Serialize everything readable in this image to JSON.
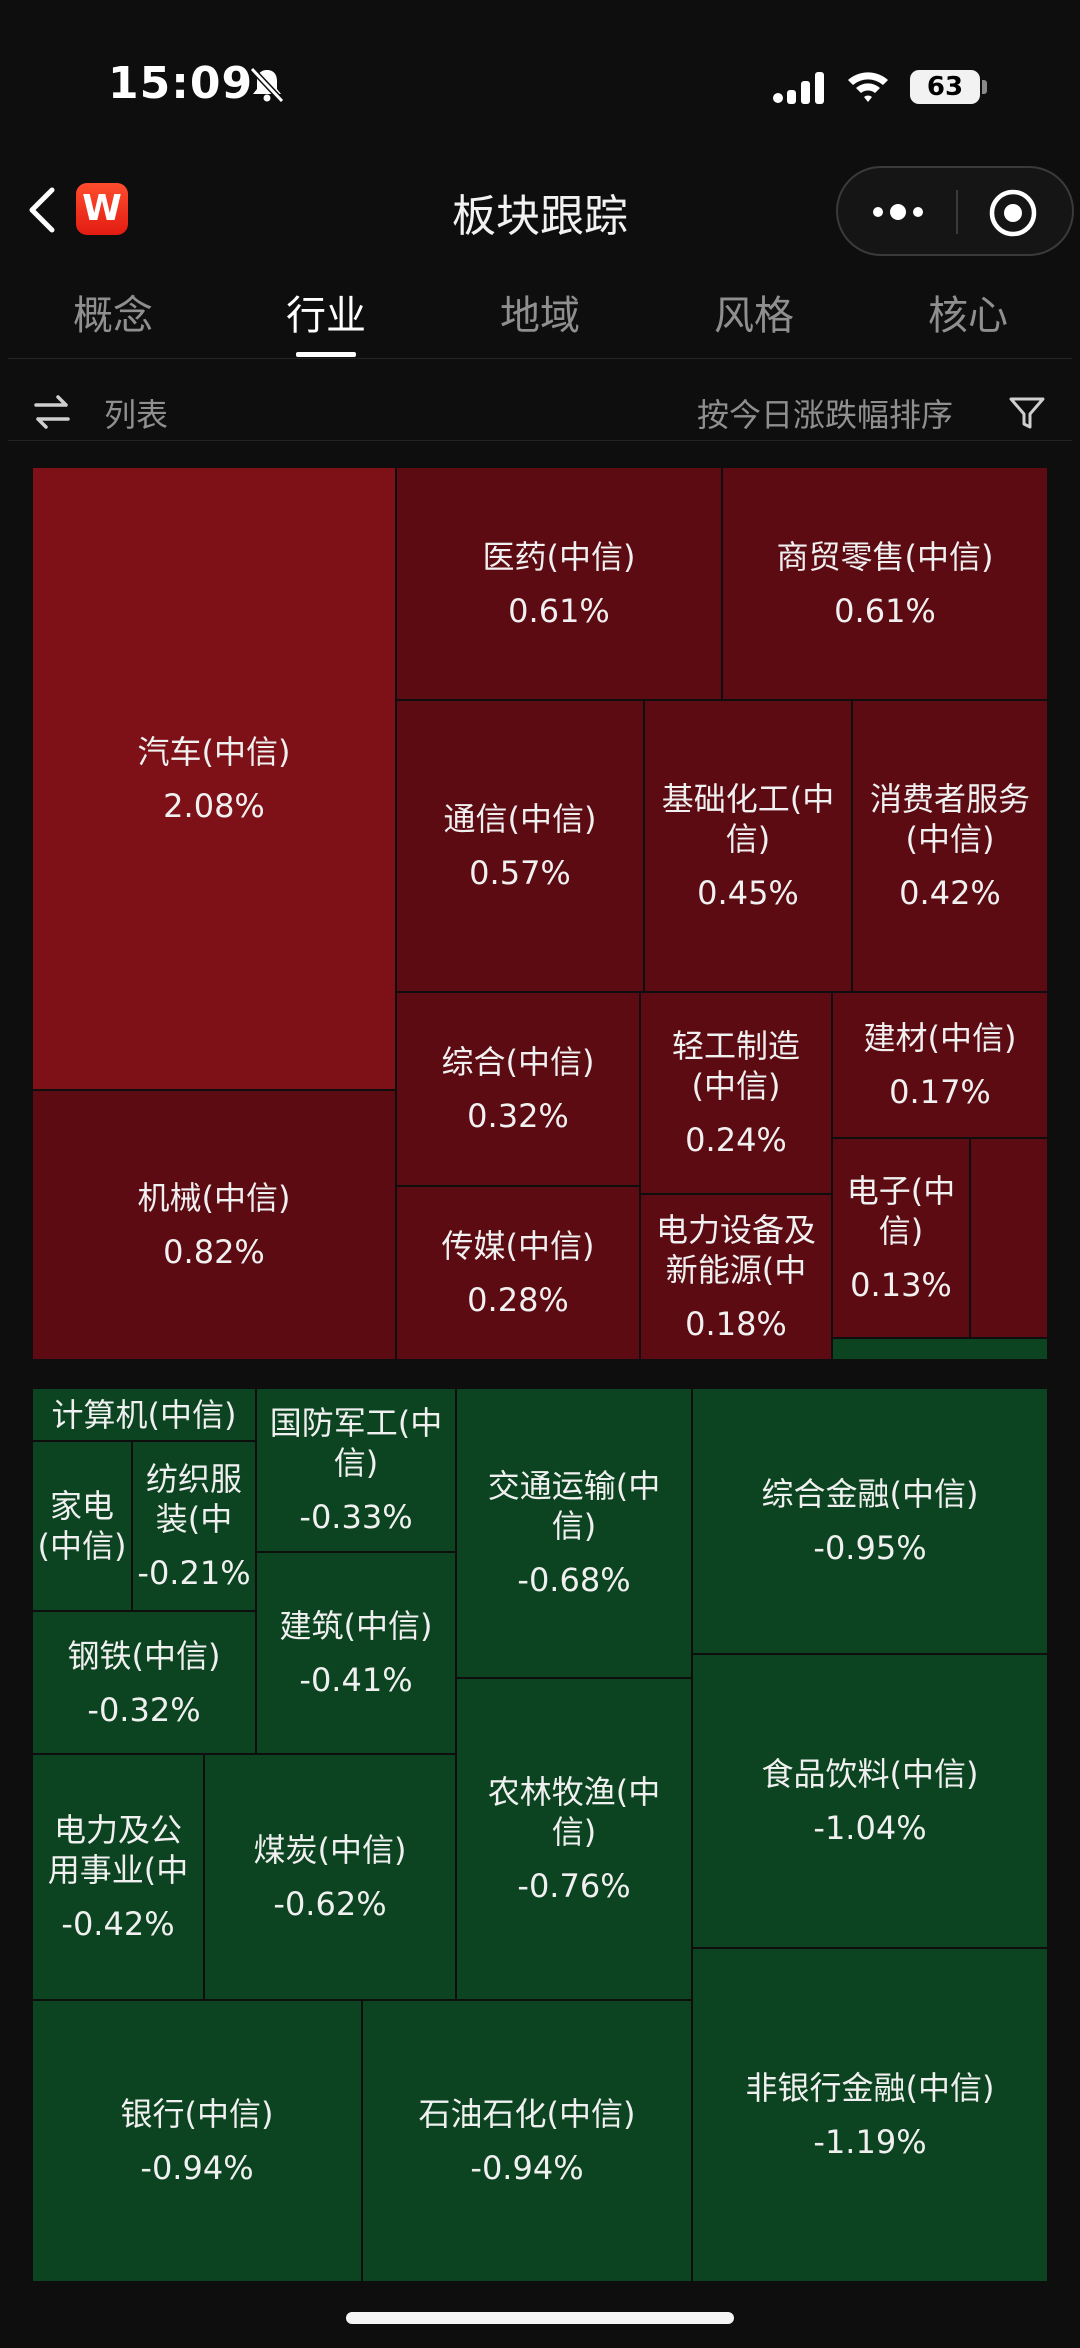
{
  "status_bar": {
    "time": "15:09",
    "battery": "63"
  },
  "header": {
    "title": "板块跟踪",
    "logo_letter": "W"
  },
  "tabs": [
    {
      "label": "概念",
      "active": false
    },
    {
      "label": "行业",
      "active": true
    },
    {
      "label": "地域",
      "active": false
    },
    {
      "label": "风格",
      "active": false
    },
    {
      "label": "核心",
      "active": false
    }
  ],
  "toolbar": {
    "view_label": "列表",
    "sort_label": "按今日涨跌幅排序"
  },
  "colors": {
    "rise_strong": "#7e1118",
    "rise": "#5c0b13",
    "fall": "#0c4320",
    "background": "#0e0e0e"
  },
  "treemap": {
    "cells": [
      {
        "id": "auto",
        "name": "汽车(中信)",
        "pct": "2.08%",
        "tone": "rise_strong"
      },
      {
        "id": "pharma",
        "name": "医药(中信)",
        "pct": "0.61%",
        "tone": "rise"
      },
      {
        "id": "retail",
        "name": "商贸零售(中信)",
        "pct": "0.61%",
        "tone": "rise"
      },
      {
        "id": "telecom",
        "name": "通信(中信)",
        "pct": "0.57%",
        "tone": "rise"
      },
      {
        "id": "chem",
        "name": "基础化工(中信)",
        "pct": "0.45%",
        "tone": "rise"
      },
      {
        "id": "consumer-services",
        "name": "消费者服务(中信)",
        "pct": "0.42%",
        "tone": "rise"
      },
      {
        "id": "machinery",
        "name": "机械(中信)",
        "pct": "0.82%",
        "tone": "rise"
      },
      {
        "id": "conglomerate",
        "name": "综合(中信)",
        "pct": "0.32%",
        "tone": "rise"
      },
      {
        "id": "light-industry",
        "name": "轻工制造(中信)",
        "pct": "0.24%",
        "tone": "rise"
      },
      {
        "id": "building-materials",
        "name": "建材(中信)",
        "pct": "0.17%",
        "tone": "rise"
      },
      {
        "id": "media",
        "name": "传媒(中信)",
        "pct": "0.28%",
        "tone": "rise"
      },
      {
        "id": "power-equipment",
        "name": "电力设备及新能源(中",
        "pct": "0.18%",
        "tone": "rise"
      },
      {
        "id": "electronics",
        "name": "电子(中信)",
        "pct": "0.13%",
        "tone": "rise"
      },
      {
        "id": "small-rise",
        "name": "",
        "pct": "",
        "tone": "rise"
      },
      {
        "id": "small-fall",
        "name": "",
        "pct": "",
        "tone": "fall"
      },
      {
        "id": "computer",
        "name": "计算机(中信)",
        "pct": "",
        "tone": "fall"
      },
      {
        "id": "defense",
        "name": "国防军工(中信)",
        "pct": "-0.33%",
        "tone": "fall"
      },
      {
        "id": "transport",
        "name": "交通运输(中信)",
        "pct": "-0.68%",
        "tone": "fall"
      },
      {
        "id": "diversified-finance",
        "name": "综合金融(中信)",
        "pct": "-0.95%",
        "tone": "fall"
      },
      {
        "id": "appliance",
        "name": "家电(中信)",
        "pct": "",
        "tone": "fall"
      },
      {
        "id": "textile",
        "name": "纺织服装(中",
        "pct": "-0.21%",
        "tone": "fall"
      },
      {
        "id": "steel",
        "name": "钢铁(中信)",
        "pct": "-0.32%",
        "tone": "fall"
      },
      {
        "id": "construction",
        "name": "建筑(中信)",
        "pct": "-0.41%",
        "tone": "fall"
      },
      {
        "id": "agriculture",
        "name": "农林牧渔(中信)",
        "pct": "-0.76%",
        "tone": "fall"
      },
      {
        "id": "food-beverage",
        "name": "食品饮料(中信)",
        "pct": "-1.04%",
        "tone": "fall"
      },
      {
        "id": "utilities",
        "name": "电力及公用事业(中",
        "pct": "-0.42%",
        "tone": "fall"
      },
      {
        "id": "coal",
        "name": "煤炭(中信)",
        "pct": "-0.62%",
        "tone": "fall"
      },
      {
        "id": "bank",
        "name": "银行(中信)",
        "pct": "-0.94%",
        "tone": "fall"
      },
      {
        "id": "petrochem",
        "name": "石油石化(中信)",
        "pct": "-0.94%",
        "tone": "fall"
      },
      {
        "id": "non-bank-finance",
        "name": "非银行金融(中信)",
        "pct": "-1.19%",
        "tone": "fall"
      }
    ]
  }
}
